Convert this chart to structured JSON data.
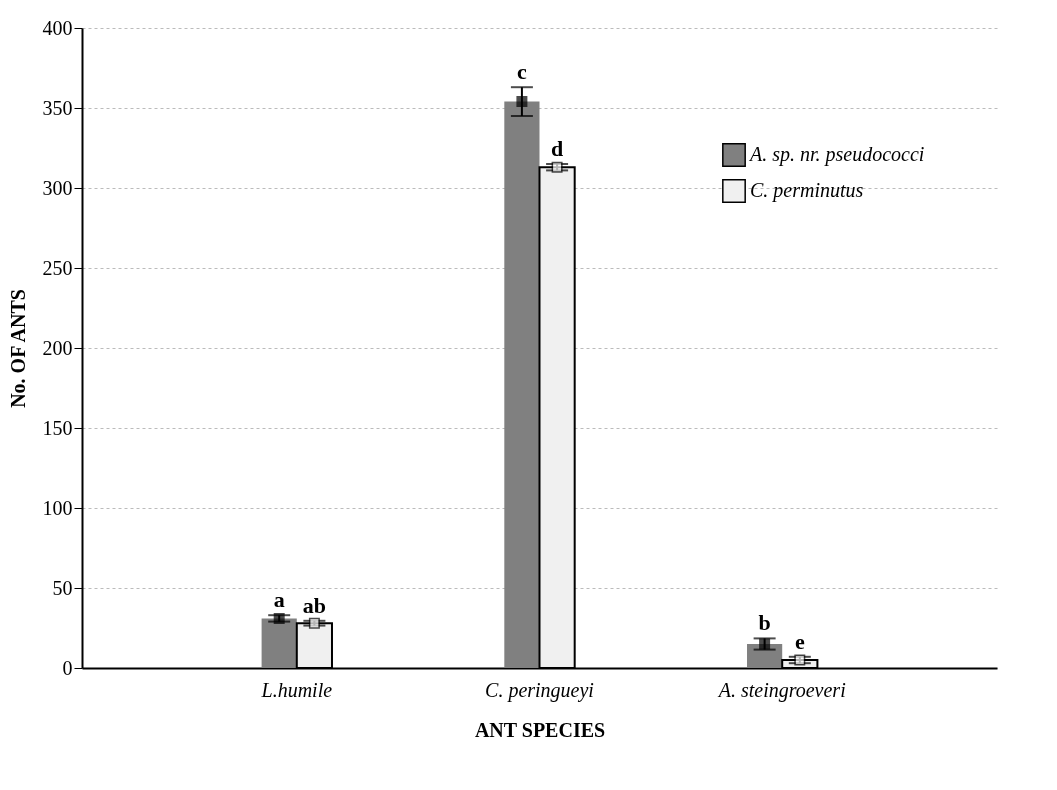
{
  "chart_data": {
    "type": "bar",
    "xlabel": "ANT SPECIES",
    "ylabel": "No. OF ANTS",
    "categories": [
      "L.humile",
      "C. peringueyi",
      "A. steingroeveri"
    ],
    "series": [
      {
        "name": "A. sp. nr. pseudococci",
        "color": "#808080",
        "values": [
          31,
          354,
          15
        ],
        "errors": [
          2,
          9,
          3.5
        ]
      },
      {
        "name": "C. perminutus",
        "color": "#f0f0f0",
        "values": [
          28,
          313,
          5
        ],
        "errors": [
          1.5,
          2,
          2
        ]
      }
    ],
    "ylim": [
      0,
      400
    ],
    "yticks": [
      0,
      50,
      100,
      150,
      200,
      250,
      300,
      350,
      400
    ],
    "grid": "y",
    "legend": "top right",
    "marker": "square",
    "annotations": [
      {
        "text": "a",
        "x": "L.humile",
        "y": 31
      },
      {
        "text": "ab",
        "x": "L.humile",
        "y": 28
      },
      {
        "text": "c",
        "x": "C. peringueyi",
        "y": 354
      },
      {
        "text": "d",
        "x": "C. peringueyi",
        "y": 313
      },
      {
        "text": "b",
        "x": "A. steingroeveri",
        "y": 15
      },
      {
        "text": "e",
        "x": "A. steingroeveri",
        "y": 5
      }
    ]
  }
}
